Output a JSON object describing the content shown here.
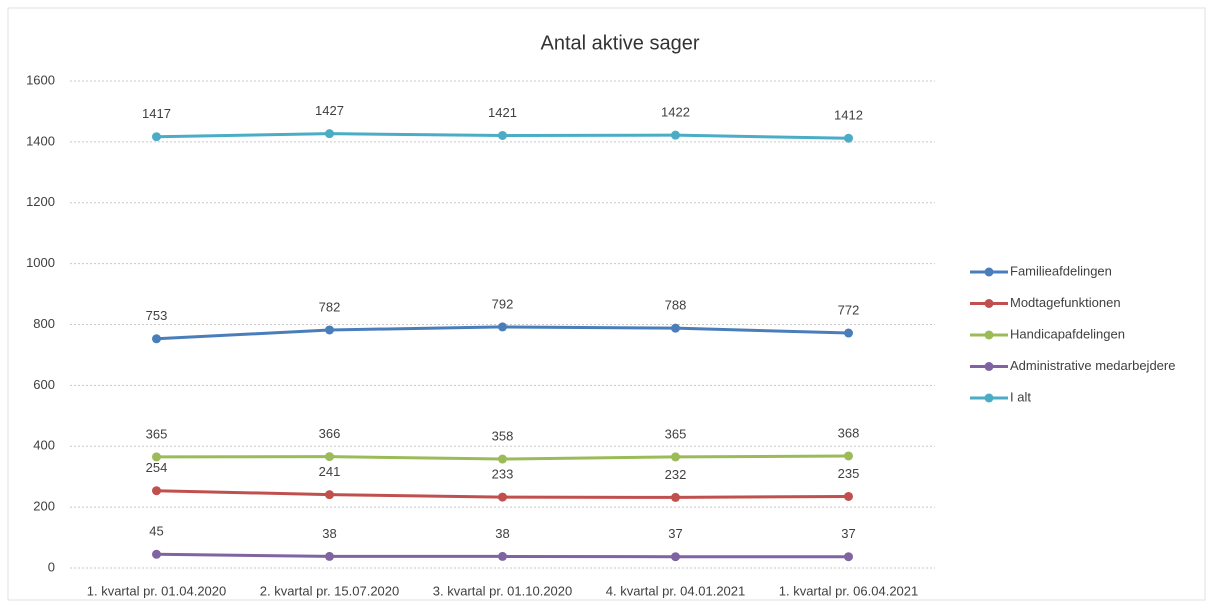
{
  "chart_data": {
    "type": "line",
    "title": "Antal aktive sager",
    "categories": [
      "1. kvartal pr. 01.04.2020",
      "2. kvartal pr. 15.07.2020",
      "3. kvartal pr. 01.10.2020",
      "4. kvartal pr. 04.01.2021",
      "1. kvartal pr. 06.04.2021"
    ],
    "series": [
      {
        "name": "Familieafdelingen",
        "color": "#4a7ebb",
        "values": [
          753,
          782,
          792,
          788,
          772
        ]
      },
      {
        "name": "Modtagefunktionen",
        "color": "#c0504d",
        "values": [
          254,
          241,
          233,
          232,
          235
        ]
      },
      {
        "name": "Handicapafdelingen",
        "color": "#9bbb59",
        "values": [
          365,
          366,
          358,
          365,
          368
        ]
      },
      {
        "name": "Administrative medarbejdere",
        "color": "#8064a2",
        "values": [
          45,
          38,
          38,
          37,
          37
        ]
      },
      {
        "name": "I alt",
        "color": "#4bacc6",
        "values": [
          1417,
          1427,
          1421,
          1422,
          1412
        ]
      }
    ],
    "ylim": [
      0,
      1600
    ],
    "yticks": [
      0,
      200,
      400,
      600,
      800,
      1000,
      1200,
      1400,
      1600
    ],
    "grid": true,
    "legend": "right"
  }
}
